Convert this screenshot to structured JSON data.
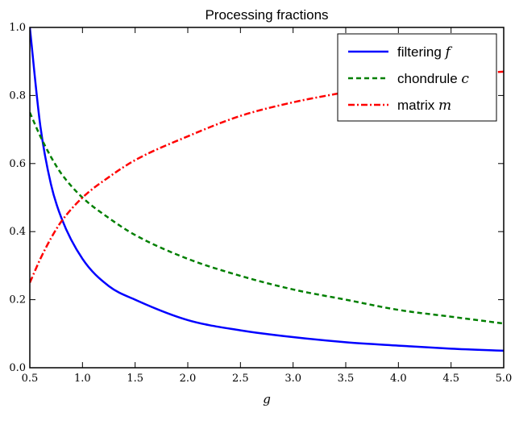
{
  "chart_data": {
    "type": "line",
    "title": "Processing fractions",
    "xlabel": "g",
    "ylabel": "",
    "xlim": [
      0.5,
      5.0
    ],
    "ylim": [
      0.0,
      1.0
    ],
    "xticks": [
      "0.5",
      "1.0",
      "1.5",
      "2.0",
      "2.5",
      "3.0",
      "3.5",
      "4.0",
      "4.5",
      "5.0"
    ],
    "yticks": [
      "0.0",
      "0.2",
      "0.4",
      "0.6",
      "0.8",
      "1.0"
    ],
    "grid": false,
    "legend_position": "top-right",
    "series": [
      {
        "name": "filtering",
        "symbol": "f",
        "color": "#0000ff",
        "style": "solid",
        "x": [
          0.5,
          0.6,
          0.7,
          0.8,
          1.0,
          1.25,
          1.5,
          2.0,
          2.5,
          3.0,
          3.5,
          4.0,
          4.5,
          5.0
        ],
        "y": [
          1.0,
          0.71,
          0.54,
          0.44,
          0.32,
          0.24,
          0.2,
          0.14,
          0.11,
          0.09,
          0.075,
          0.065,
          0.056,
          0.05
        ]
      },
      {
        "name": "chondrule",
        "symbol": "c",
        "color": "#007f00",
        "style": "dashed",
        "x": [
          0.5,
          0.6,
          0.7,
          0.8,
          1.0,
          1.25,
          1.5,
          2.0,
          2.5,
          3.0,
          3.5,
          4.0,
          4.5,
          5.0
        ],
        "y": [
          0.75,
          0.68,
          0.62,
          0.57,
          0.5,
          0.44,
          0.39,
          0.32,
          0.27,
          0.23,
          0.2,
          0.17,
          0.15,
          0.13
        ]
      },
      {
        "name": "matrix",
        "symbol": "m",
        "color": "#ff0000",
        "style": "dashdot",
        "x": [
          0.5,
          0.6,
          0.7,
          0.8,
          1.0,
          1.25,
          1.5,
          2.0,
          2.5,
          3.0,
          3.5,
          4.0,
          4.5,
          5.0
        ],
        "y": [
          0.25,
          0.32,
          0.38,
          0.43,
          0.5,
          0.56,
          0.61,
          0.68,
          0.74,
          0.78,
          0.81,
          0.84,
          0.86,
          0.87
        ]
      }
    ]
  }
}
